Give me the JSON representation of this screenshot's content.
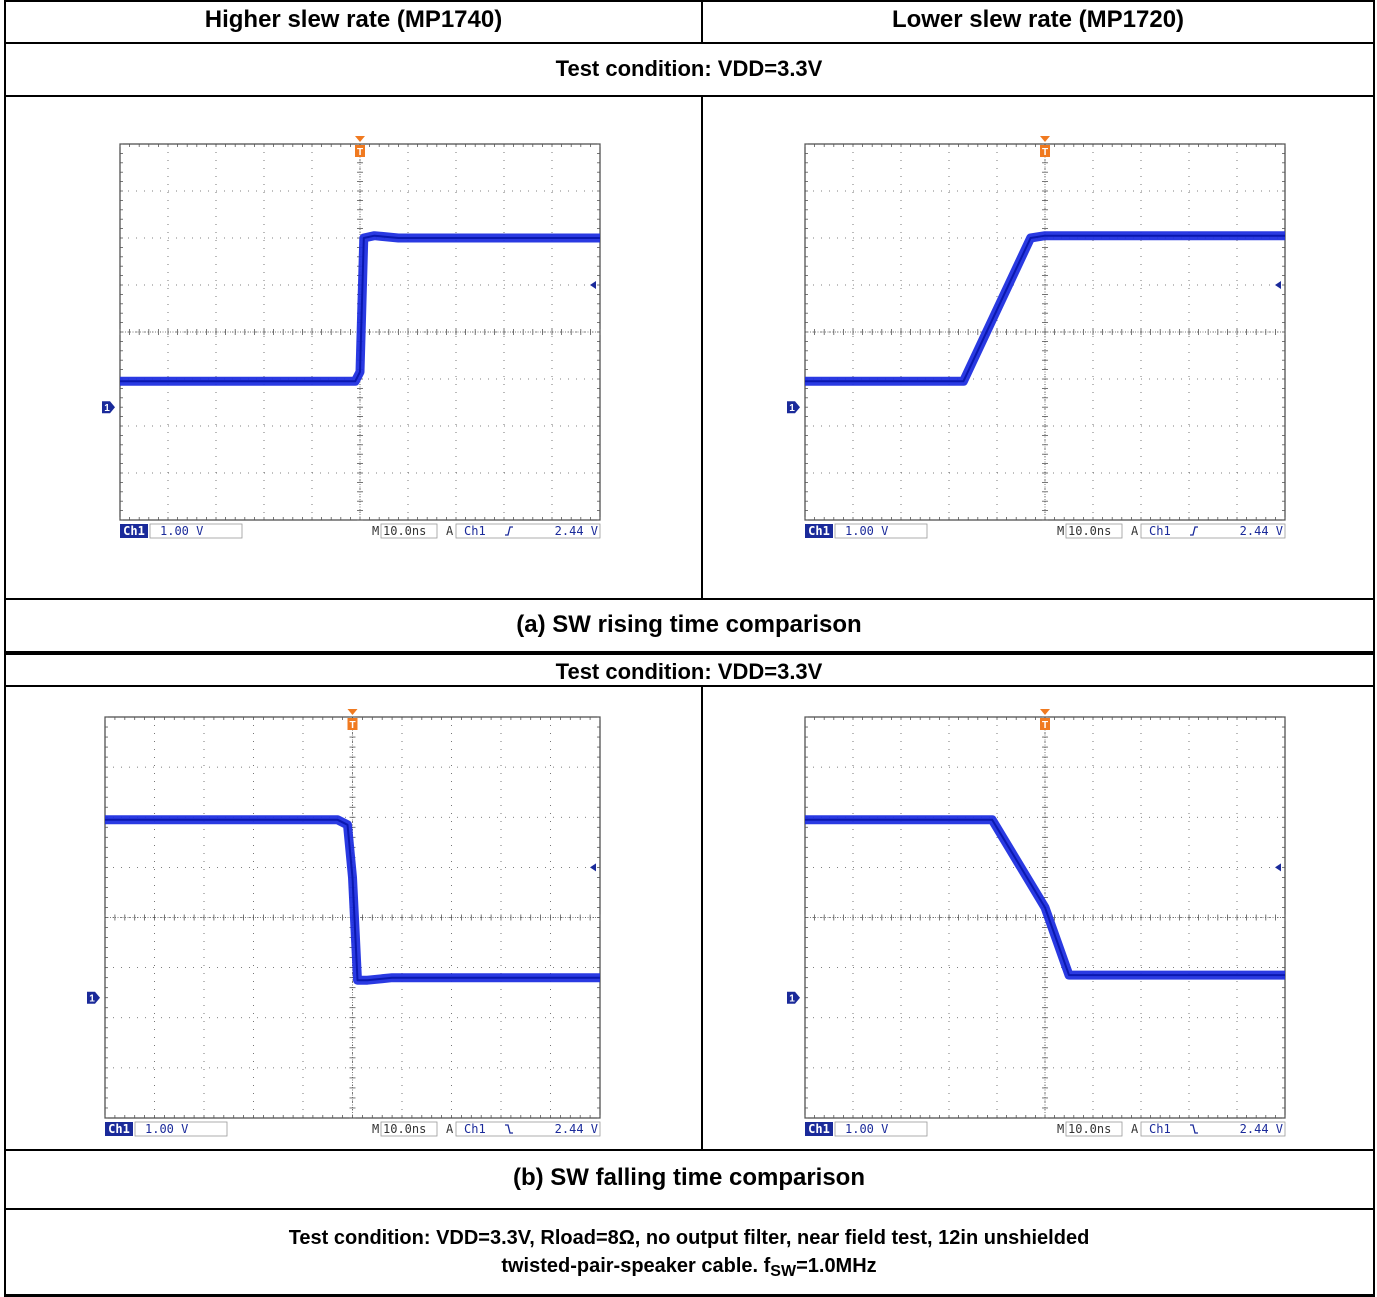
{
  "header": {
    "left": "Higher slew rate (MP1740)",
    "right": "Lower slew rate (MP1720)"
  },
  "test_condition_label": "Test condition: VDD=3.3V",
  "caption_a": "(a) SW rising time comparison",
  "caption_b": "(b) SW falling time comparison",
  "footer": {
    "line1": "Test condition: VDD=3.3V, Rload=8Ω, no output filter, near field test, 12in unshielded",
    "line2_prefix": "twisted-pair-speaker cable. f",
    "line2_sub": "SW",
    "line2_suffix": "=1.0MHz"
  },
  "colors": {
    "trace": "#1f2fe0",
    "readout_text": "#1a2a9a",
    "ch1_badge": "#1a2a9a",
    "trigger_marker": "#f07a20",
    "grid": "#555555"
  },
  "scope_readout": {
    "ch1_label": "Ch1",
    "ch1_scale": "1.00 V",
    "time_label": "M",
    "time_scale": "10.0ns",
    "trigger_label": "A",
    "trigger_source": "Ch1",
    "trigger_level": "2.44 V"
  },
  "chart_data": [
    {
      "type": "line",
      "id": "rise-mp1740",
      "x_unit": "ns",
      "xlim": [
        -50,
        50
      ],
      "ylim": [
        -4,
        4
      ],
      "x": [
        -50,
        -1,
        0,
        0.8,
        3,
        8,
        50
      ],
      "y": [
        -1.05,
        -1.05,
        -0.85,
        2.0,
        2.05,
        2.0,
        2.0
      ]
    },
    {
      "type": "line",
      "id": "rise-mp1720",
      "x_unit": "ns",
      "xlim": [
        -50,
        50
      ],
      "ylim": [
        -4,
        4
      ],
      "x": [
        -50,
        -17,
        -3,
        0,
        50
      ],
      "y": [
        -1.05,
        -1.05,
        2.0,
        2.05,
        2.05
      ]
    },
    {
      "type": "line",
      "id": "fall-mp1740",
      "x_unit": "ns",
      "xlim": [
        -50,
        50
      ],
      "ylim": [
        -4,
        4
      ],
      "x": [
        -50,
        -3,
        -1,
        0,
        1,
        3,
        8,
        50
      ],
      "y": [
        1.95,
        1.95,
        1.85,
        0.8,
        -1.25,
        -1.25,
        -1.2,
        -1.2
      ]
    },
    {
      "type": "line",
      "id": "fall-mp1720",
      "x_unit": "ns",
      "xlim": [
        -50,
        50
      ],
      "ylim": [
        -4,
        4
      ],
      "x": [
        -50,
        -11,
        0,
        5,
        50
      ],
      "y": [
        1.95,
        1.95,
        0.2,
        -1.15,
        -1.15
      ]
    }
  ]
}
